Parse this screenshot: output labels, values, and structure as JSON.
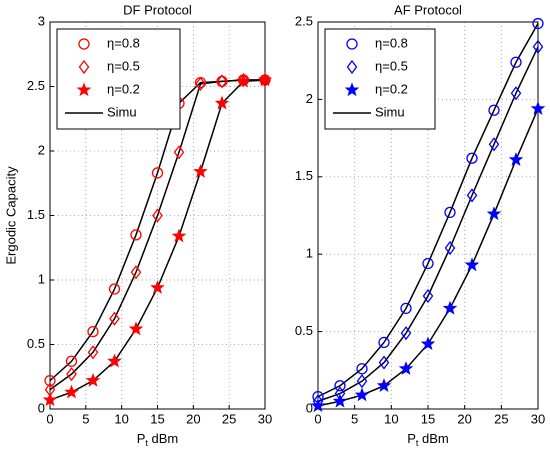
{
  "chart_data": [
    {
      "type": "line",
      "title": "DF Protocol",
      "ylabel": "Ergodic Capacity",
      "xlabel": "P",
      "xlabel_sub": "t",
      "xlabel_unit": "dBm",
      "x": [
        0,
        3,
        6,
        9,
        12,
        15,
        18,
        21,
        24,
        27,
        30
      ],
      "xlim": [
        0,
        30
      ],
      "xticks": [
        0,
        5,
        10,
        15,
        20,
        25,
        30
      ],
      "ylim": [
        0,
        3
      ],
      "yticks": [
        0,
        0.5,
        1,
        1.5,
        2,
        2.5,
        3
      ],
      "grid": true,
      "legend": "upper left",
      "line_legend": "Simu",
      "line_color": "#000000",
      "series": [
        {
          "name": "η=0.8",
          "color": "#ff0000",
          "marker": "circle",
          "values": [
            0.22,
            0.37,
            0.6,
            0.93,
            1.35,
            1.83,
            2.37,
            2.53,
            2.54,
            2.55,
            2.55
          ]
        },
        {
          "name": "η=0.5",
          "color": "#ff0000",
          "marker": "diamond",
          "values": [
            0.15,
            0.27,
            0.44,
            0.7,
            1.06,
            1.5,
            1.99,
            2.52,
            2.54,
            2.55,
            2.55
          ]
        },
        {
          "name": "η=0.2",
          "color": "#ff0000",
          "marker": "star",
          "values": [
            0.07,
            0.13,
            0.22,
            0.37,
            0.62,
            0.94,
            1.34,
            1.84,
            2.37,
            2.54,
            2.55
          ]
        }
      ]
    },
    {
      "type": "line",
      "title": "AF Protocol",
      "xlabel": "P",
      "xlabel_sub": "t",
      "xlabel_unit": "dBm",
      "x": [
        0,
        3,
        6,
        9,
        12,
        15,
        18,
        21,
        24,
        27,
        30
      ],
      "xlim": [
        0,
        30
      ],
      "xticks": [
        0,
        5,
        10,
        15,
        20,
        25,
        30
      ],
      "ylim": [
        0,
        2.5
      ],
      "yticks": [
        0,
        0.5,
        1,
        1.5,
        2,
        2.5
      ],
      "grid": true,
      "legend": "upper left",
      "line_legend": "Simu",
      "line_color": "#000000",
      "series": [
        {
          "name": "η=0.8",
          "color": "#0000ff",
          "marker": "circle",
          "values": [
            0.08,
            0.15,
            0.26,
            0.43,
            0.65,
            0.94,
            1.27,
            1.62,
            1.93,
            2.24,
            2.49
          ]
        },
        {
          "name": "η=0.5",
          "color": "#0000ff",
          "marker": "diamond",
          "values": [
            0.05,
            0.1,
            0.18,
            0.3,
            0.49,
            0.73,
            1.04,
            1.38,
            1.71,
            2.04,
            2.34
          ]
        },
        {
          "name": "η=0.2",
          "color": "#0000ff",
          "marker": "star",
          "values": [
            0.02,
            0.05,
            0.09,
            0.15,
            0.26,
            0.42,
            0.65,
            0.93,
            1.26,
            1.61,
            1.94
          ]
        }
      ]
    }
  ]
}
